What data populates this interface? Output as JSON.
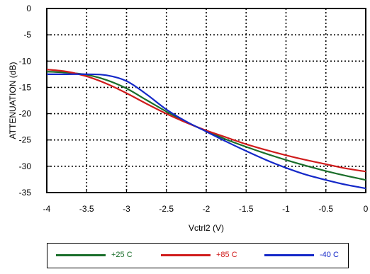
{
  "chart_data": {
    "type": "line",
    "title": "",
    "xlabel": "Vctrl2 (V)",
    "ylabel": "ATTENUATION (dB)",
    "xlim": [
      -4,
      0
    ],
    "ylim": [
      -35,
      0
    ],
    "x_ticks": [
      "-4",
      "-3.5",
      "-3",
      "-2.5",
      "-2",
      "-1.5",
      "-1",
      "-0.5",
      "0"
    ],
    "y_ticks": [
      "0",
      "-5",
      "-10",
      "-15",
      "-20",
      "-25",
      "-30",
      "-35"
    ],
    "grid": "dotted",
    "legend_placement": "bottom",
    "series": [
      {
        "name": "+25 C",
        "color": "#1a6e2a",
        "x": [
          -4,
          -3.75,
          -3.5,
          -3.25,
          -3.0,
          -2.75,
          -2.5,
          -2.25,
          -2.0,
          -1.75,
          -1.5,
          -1.25,
          -1.0,
          -0.75,
          -0.5,
          -0.25,
          0
        ],
        "y": [
          -12.0,
          -12.2,
          -12.6,
          -13.6,
          -15.2,
          -17.4,
          -19.6,
          -21.6,
          -23.3,
          -24.9,
          -26.3,
          -27.6,
          -28.8,
          -29.9,
          -30.9,
          -31.8,
          -32.6
        ]
      },
      {
        "name": "+85 C",
        "color": "#d01c1c",
        "x": [
          -4,
          -3.75,
          -3.5,
          -3.25,
          -3.0,
          -2.75,
          -2.5,
          -2.25,
          -2.0,
          -1.75,
          -1.5,
          -1.25,
          -1.0,
          -0.75,
          -0.5,
          -0.25,
          0
        ],
        "y": [
          -11.6,
          -12.0,
          -12.9,
          -14.3,
          -16.1,
          -18.1,
          -20.0,
          -21.7,
          -23.2,
          -24.5,
          -25.8,
          -26.9,
          -27.9,
          -28.8,
          -29.6,
          -30.4,
          -31.0
        ]
      },
      {
        "name": "-40 C",
        "color": "#1428c8",
        "x": [
          -4,
          -3.75,
          -3.5,
          -3.25,
          -3.0,
          -2.75,
          -2.5,
          -2.25,
          -2.0,
          -1.75,
          -1.5,
          -1.25,
          -1.0,
          -0.75,
          -0.5,
          -0.25,
          0
        ],
        "y": [
          -12.5,
          -12.5,
          -12.5,
          -12.7,
          -13.8,
          -16.3,
          -19.2,
          -21.5,
          -23.4,
          -25.3,
          -27.1,
          -28.8,
          -30.3,
          -31.6,
          -32.6,
          -33.5,
          -34.2
        ]
      }
    ]
  }
}
